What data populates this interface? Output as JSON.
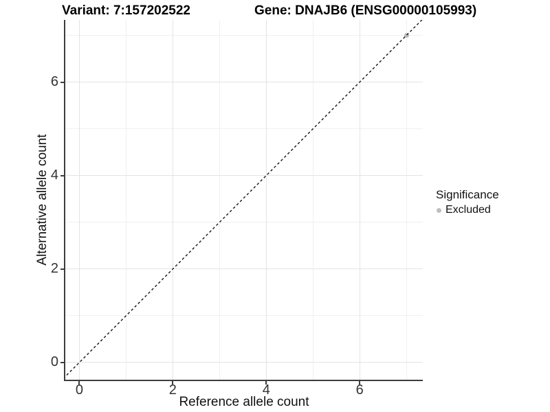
{
  "chart_data": {
    "type": "scatter",
    "title_left": "Variant: 7:157202522",
    "title_right": "Gene: DNAJB6 (ENSG00000105993)",
    "xlabel": "Reference allele count",
    "ylabel": "Alternative allele count",
    "xlim": [
      -0.3,
      7.35
    ],
    "ylim": [
      -0.37,
      7.33
    ],
    "x_major_ticks": [
      0,
      2,
      4,
      6
    ],
    "x_minor_ticks": [
      1,
      3,
      5,
      7
    ],
    "y_major_ticks": [
      0,
      2,
      4,
      6
    ],
    "y_minor_ticks": [
      1,
      3,
      5,
      7
    ],
    "grid": "major+minor",
    "points": [
      {
        "x": 7,
        "y": 7,
        "series": "Excluded",
        "color": "#bebebe",
        "size": 7
      }
    ],
    "reference_line": {
      "kind": "identity y=x",
      "style": "dashed",
      "color": "#111111"
    },
    "legend": {
      "title": "Significance",
      "position": "right-middle",
      "items": [
        {
          "label": "Excluded",
          "color": "#bebebe"
        }
      ]
    }
  },
  "colors": {
    "background": "#ffffff",
    "axis_line": "#3c3c3c",
    "grid_major": "#e3e3e3",
    "grid_minor": "#f0f0f0",
    "tick_text": "#333333",
    "title_text": "#000000"
  }
}
